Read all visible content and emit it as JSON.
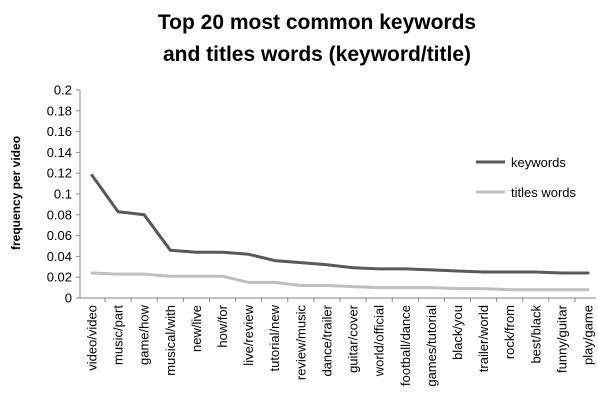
{
  "chart_data": {
    "type": "line",
    "title_lines": [
      "Top 20 most common keywords",
      "and titles words (keyword/title)"
    ],
    "xlabel": "",
    "ylabel": "frequency per video",
    "ylim": [
      0,
      0.2
    ],
    "yticks": [
      "0",
      "0.02",
      "0.04",
      "0.06",
      "0.08",
      "0.1",
      "0.12",
      "0.14",
      "0.16",
      "0.18",
      "0.2"
    ],
    "grid": false,
    "legend_position": "right",
    "categories": [
      "video/video",
      "music/part",
      "game/how",
      "musical/with",
      "new/live",
      "how/for",
      "live/review",
      "tutorial/new",
      "review/music",
      "dance/trailer",
      "guitar/cover",
      "world/official",
      "football/dance",
      "games/tutorial",
      "black/you",
      "trailer/world",
      "rock/from",
      "best/black",
      "funny/guitar",
      "play/game"
    ],
    "series": [
      {
        "name": "keywords",
        "color": "#595959",
        "values": [
          0.118,
          0.083,
          0.08,
          0.046,
          0.044,
          0.044,
          0.042,
          0.036,
          0.034,
          0.032,
          0.029,
          0.028,
          0.028,
          0.027,
          0.026,
          0.025,
          0.025,
          0.025,
          0.024,
          0.024
        ]
      },
      {
        "name": "titles words",
        "color": "#bfbfbf",
        "values": [
          0.024,
          0.023,
          0.023,
          0.021,
          0.021,
          0.021,
          0.015,
          0.015,
          0.012,
          0.012,
          0.011,
          0.01,
          0.01,
          0.01,
          0.009,
          0.009,
          0.008,
          0.008,
          0.008,
          0.008
        ]
      }
    ]
  }
}
